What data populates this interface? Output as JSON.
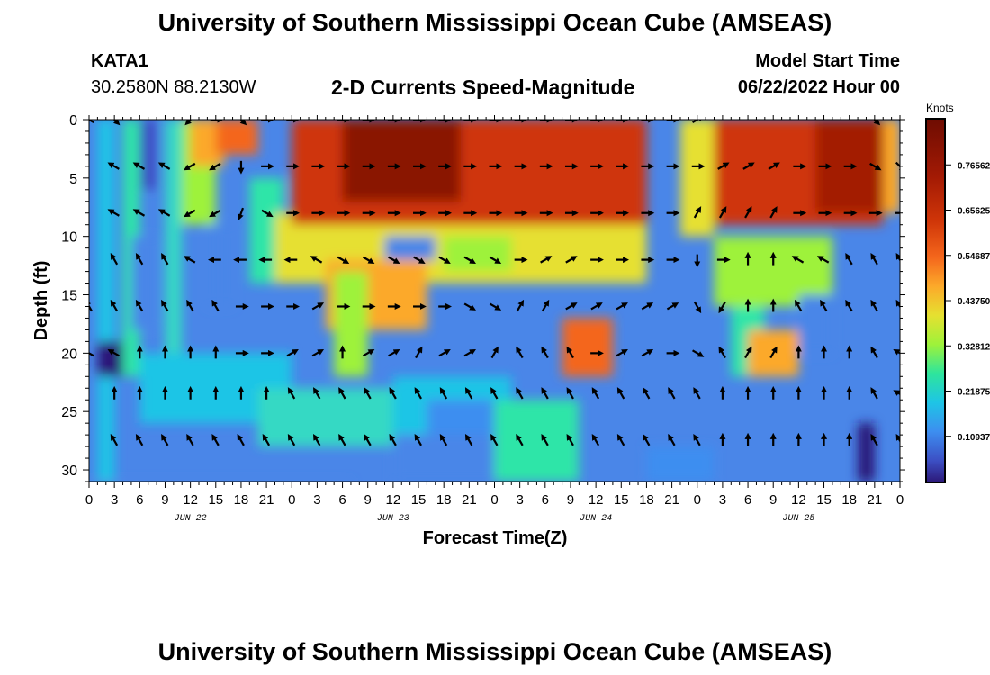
{
  "header": {
    "title": "University of Southern Mississippi Ocean Cube (AMSEAS)",
    "station": "KATA1",
    "coords": "30.2580N  88.2130W",
    "subtitle": "2-D Currents Speed-Magnitude",
    "model_start_label": "Model Start Time",
    "model_start_value": "06/22/2022 Hour 00"
  },
  "footer": {
    "title": "University of Southern Mississippi Ocean Cube (AMSEAS)"
  },
  "chart_data": {
    "type": "heatmap",
    "title": "2-D Currents Speed-Magnitude",
    "xlabel": "Forecast Time(Z)",
    "ylabel": "Depth (ft)",
    "x_range": [
      0,
      96
    ],
    "y_range": [
      0,
      31
    ],
    "x_ticks": [
      0,
      3,
      6,
      9,
      12,
      15,
      18,
      21,
      24,
      27,
      30,
      33,
      36,
      39,
      42,
      45,
      48,
      51,
      54,
      57,
      60,
      63,
      66,
      69,
      72,
      75,
      78,
      81,
      84,
      87,
      90,
      93,
      96
    ],
    "x_tick_labels": [
      "0",
      "3",
      "6",
      "9",
      "12",
      "15",
      "18",
      "21",
      "0",
      "3",
      "6",
      "9",
      "12",
      "15",
      "18",
      "21",
      "0",
      "3",
      "6",
      "9",
      "12",
      "15",
      "18",
      "21",
      "0",
      "3",
      "6",
      "9",
      "12",
      "15",
      "18",
      "21",
      "0"
    ],
    "date_labels": [
      {
        "label": "JUN 22",
        "hour": 12
      },
      {
        "label": "JUN 23",
        "hour": 36
      },
      {
        "label": "JUN 24",
        "hour": 60
      },
      {
        "label": "JUN 25",
        "hour": 84
      }
    ],
    "y_ticks": [
      0,
      5,
      10,
      15,
      20,
      25,
      30
    ],
    "y_tick_labels": [
      "0",
      "5",
      "10",
      "15",
      "20",
      "25",
      "30"
    ],
    "colorbar": {
      "unit": "Knots",
      "min": 0,
      "max": 0.875,
      "ticks": [
        0.109375,
        0.21875,
        0.328125,
        0.4375,
        0.546875,
        0.65625,
        0.765625
      ],
      "tick_labels": [
        "0.10937",
        "0.21875",
        "0.32812",
        "0.43750",
        "0.54687",
        "0.65625",
        "0.76562"
      ]
    },
    "arrow_depths": [
      0,
      4,
      8,
      12,
      16,
      20,
      23.5,
      27.5
    ],
    "arrow_hours": [
      0,
      3,
      6,
      9,
      12,
      15,
      18,
      21,
      24,
      27,
      30,
      33,
      36,
      39,
      42,
      45,
      48,
      51,
      54,
      57,
      60,
      63,
      66,
      69,
      72,
      75,
      78,
      81,
      84,
      87,
      90,
      93,
      96
    ],
    "arrow_directions_deg": [
      [
        300,
        135,
        null,
        null,
        225,
        90,
        135,
        90,
        90,
        null,
        90,
        90,
        90,
        90,
        90,
        90,
        90,
        90,
        90,
        90,
        90,
        90,
        90,
        90,
        60,
        null,
        null,
        null,
        null,
        null,
        null,
        135,
        120
      ],
      [
        null,
        300,
        300,
        300,
        240,
        240,
        180,
        90,
        90,
        90,
        90,
        90,
        90,
        90,
        90,
        90,
        90,
        90,
        90,
        90,
        90,
        90,
        90,
        90,
        90,
        60,
        60,
        60,
        90,
        90,
        90,
        120,
        135
      ],
      [
        null,
        300,
        300,
        300,
        240,
        240,
        200,
        120,
        90,
        90,
        90,
        90,
        90,
        90,
        90,
        90,
        90,
        90,
        90,
        90,
        90,
        90,
        90,
        90,
        30,
        30,
        30,
        30,
        90,
        90,
        90,
        90,
        90
      ],
      [
        null,
        330,
        330,
        330,
        300,
        270,
        270,
        270,
        270,
        300,
        120,
        120,
        120,
        120,
        120,
        120,
        120,
        90,
        60,
        60,
        90,
        90,
        90,
        90,
        180,
        90,
        0,
        0,
        300,
        300,
        330,
        330,
        330
      ],
      [
        330,
        330,
        330,
        330,
        330,
        330,
        90,
        90,
        90,
        60,
        90,
        90,
        90,
        90,
        90,
        120,
        120,
        30,
        30,
        60,
        60,
        60,
        60,
        60,
        150,
        210,
        0,
        0,
        330,
        330,
        330,
        330,
        330
      ],
      [
        300,
        300,
        0,
        0,
        0,
        0,
        90,
        90,
        60,
        60,
        0,
        60,
        60,
        30,
        60,
        60,
        30,
        330,
        330,
        330,
        90,
        60,
        60,
        90,
        120,
        330,
        30,
        30,
        0,
        0,
        0,
        330,
        300
      ],
      [
        null,
        0,
        0,
        0,
        0,
        0,
        0,
        0,
        330,
        330,
        330,
        330,
        330,
        330,
        330,
        330,
        330,
        330,
        330,
        330,
        330,
        330,
        330,
        330,
        330,
        0,
        0,
        0,
        0,
        0,
        0,
        330,
        300
      ],
      [
        null,
        330,
        330,
        330,
        330,
        330,
        330,
        330,
        330,
        330,
        330,
        330,
        330,
        330,
        330,
        330,
        330,
        330,
        330,
        330,
        330,
        330,
        330,
        330,
        330,
        0,
        0,
        0,
        0,
        0,
        0,
        330,
        330
      ]
    ]
  }
}
